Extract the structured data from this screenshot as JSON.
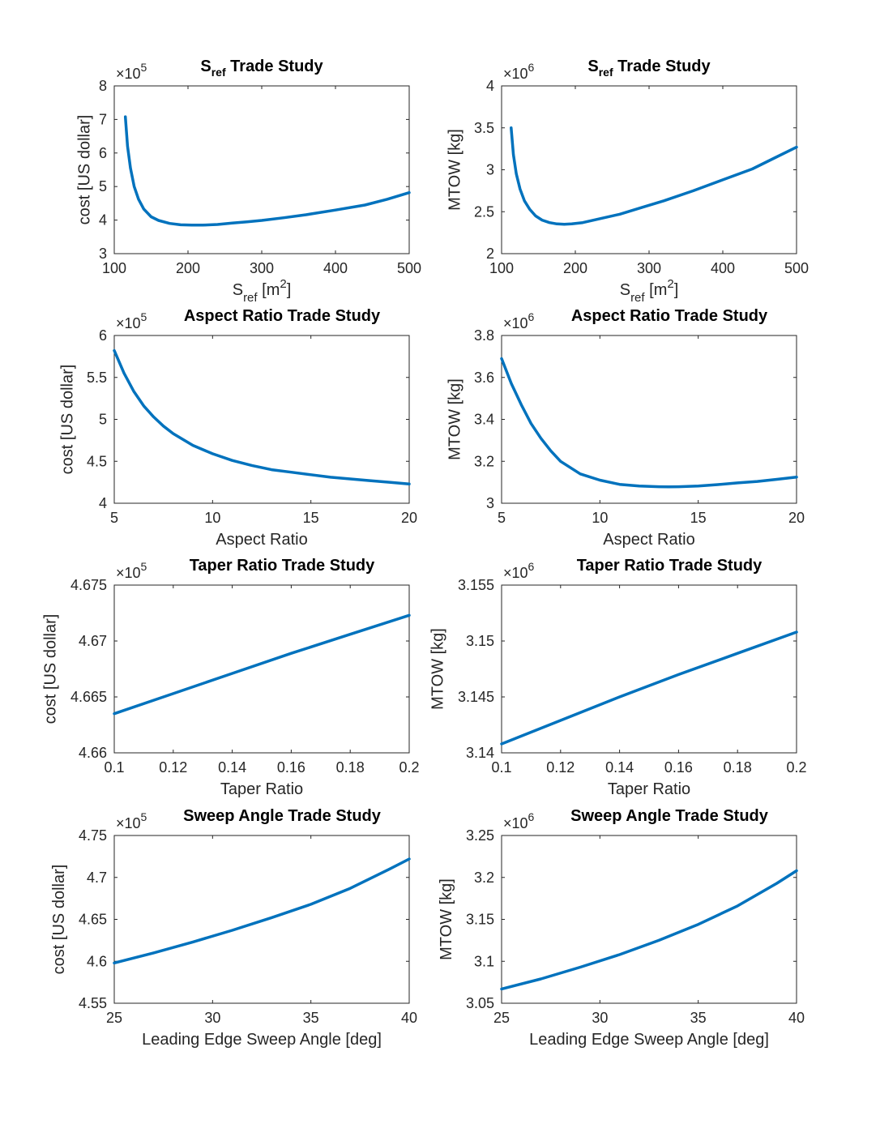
{
  "figure": {
    "background": "#ffffff",
    "line_color": "#0072bd"
  },
  "chart_data": [
    {
      "type": "line",
      "title_main": "S",
      "title_sub": "ref",
      "title_rest": " Trade Study",
      "xlabel_main": "S",
      "xlabel_sub": "ref",
      "xlabel_rest": " [m",
      "xlabel_sup": "2",
      "xlabel_end": "]",
      "ylabel": "cost [US dollar]",
      "exponent_base": "×10",
      "exponent_power": "5",
      "xlim": [
        100,
        500
      ],
      "ylim": [
        3,
        8
      ],
      "xticks": [
        100,
        200,
        300,
        400,
        500
      ],
      "xtick_labels": [
        "100",
        "200",
        "300",
        "400",
        "500"
      ],
      "yticks": [
        3,
        4,
        5,
        6,
        7,
        8
      ],
      "ytick_labels": [
        "3",
        "4",
        "5",
        "6",
        "7",
        "8"
      ],
      "series": [
        {
          "x": [
            115,
            118,
            122,
            127,
            133,
            140,
            150,
            160,
            175,
            190,
            205,
            220,
            240,
            260,
            280,
            300,
            330,
            360,
            400,
            440,
            470,
            500
          ],
          "y": [
            7.08,
            6.2,
            5.55,
            5.0,
            4.62,
            4.33,
            4.1,
            3.99,
            3.9,
            3.86,
            3.85,
            3.85,
            3.87,
            3.91,
            3.95,
            3.99,
            4.07,
            4.16,
            4.3,
            4.45,
            4.62,
            4.82
          ]
        }
      ]
    },
    {
      "type": "line",
      "title_main": "S",
      "title_sub": "ref",
      "title_rest": " Trade Study",
      "xlabel_main": "S",
      "xlabel_sub": "ref",
      "xlabel_rest": " [m",
      "xlabel_sup": "2",
      "xlabel_end": "]",
      "ylabel": "MTOW [kg]",
      "exponent_base": "×10",
      "exponent_power": "6",
      "xlim": [
        100,
        500
      ],
      "ylim": [
        2,
        4
      ],
      "xticks": [
        100,
        200,
        300,
        400,
        500
      ],
      "xtick_labels": [
        "100",
        "200",
        "300",
        "400",
        "500"
      ],
      "yticks": [
        2,
        2.5,
        3,
        3.5,
        4
      ],
      "ytick_labels": [
        "2",
        "2.5",
        "3",
        "3.5",
        "4"
      ],
      "series": [
        {
          "x": [
            113,
            116,
            120,
            125,
            131,
            138,
            146,
            155,
            165,
            175,
            185,
            195,
            210,
            230,
            260,
            290,
            320,
            360,
            400,
            440,
            470,
            500
          ],
          "y": [
            3.5,
            3.18,
            2.95,
            2.77,
            2.63,
            2.53,
            2.45,
            2.4,
            2.37,
            2.355,
            2.35,
            2.355,
            2.37,
            2.41,
            2.47,
            2.55,
            2.63,
            2.75,
            2.88,
            3.01,
            3.14,
            3.27
          ]
        }
      ]
    },
    {
      "type": "line",
      "title_main": "Aspect Ratio Trade Study",
      "ylabel": "cost [US dollar]",
      "xlabel_main": "Aspect Ratio",
      "exponent_base": "×10",
      "exponent_power": "5",
      "xlim": [
        5,
        20
      ],
      "ylim": [
        4,
        6
      ],
      "xticks": [
        5,
        10,
        15,
        20
      ],
      "xtick_labels": [
        "5",
        "10",
        "15",
        "20"
      ],
      "yticks": [
        4,
        4.5,
        5,
        5.5,
        6
      ],
      "ytick_labels": [
        "4",
        "4.5",
        "5",
        "5.5",
        "6"
      ],
      "series": [
        {
          "x": [
            5,
            5.5,
            6,
            6.5,
            7,
            7.5,
            8,
            9,
            10,
            11,
            12,
            13,
            14,
            15,
            16,
            17,
            18,
            19,
            20
          ],
          "y": [
            5.82,
            5.55,
            5.33,
            5.16,
            5.03,
            4.92,
            4.83,
            4.69,
            4.59,
            4.51,
            4.45,
            4.4,
            4.37,
            4.34,
            4.31,
            4.29,
            4.27,
            4.25,
            4.23
          ]
        }
      ]
    },
    {
      "type": "line",
      "title_main": "Aspect Ratio Trade Study",
      "ylabel": "MTOW [kg]",
      "xlabel_main": "Aspect Ratio",
      "exponent_base": "×10",
      "exponent_power": "6",
      "xlim": [
        5,
        20
      ],
      "ylim": [
        3,
        3.8
      ],
      "xticks": [
        5,
        10,
        15,
        20
      ],
      "xtick_labels": [
        "5",
        "10",
        "15",
        "20"
      ],
      "yticks": [
        3,
        3.2,
        3.4,
        3.6,
        3.8
      ],
      "ytick_labels": [
        "3",
        "3.2",
        "3.4",
        "3.6",
        "3.8"
      ],
      "series": [
        {
          "x": [
            5,
            5.5,
            6,
            6.5,
            7,
            7.5,
            8,
            9,
            10,
            11,
            12,
            13,
            13.5,
            14,
            15,
            16,
            17,
            18,
            19,
            20
          ],
          "y": [
            3.69,
            3.57,
            3.47,
            3.38,
            3.31,
            3.25,
            3.2,
            3.14,
            3.11,
            3.09,
            3.082,
            3.079,
            3.078,
            3.079,
            3.082,
            3.089,
            3.097,
            3.104,
            3.114,
            3.125
          ]
        }
      ]
    },
    {
      "type": "line",
      "title_main": " Taper Ratio Trade Study",
      "ylabel": "cost [US dollar]",
      "xlabel_main": "Taper Ratio",
      "exponent_base": "×10",
      "exponent_power": "5",
      "xlim": [
        0.1,
        0.2
      ],
      "ylim": [
        4.66,
        4.675
      ],
      "xticks": [
        0.1,
        0.12,
        0.14,
        0.16,
        0.18,
        0.2
      ],
      "xtick_labels": [
        "0.1",
        "0.12",
        "0.14",
        "0.16",
        "0.18",
        "0.2"
      ],
      "yticks": [
        4.66,
        4.665,
        4.67,
        4.675
      ],
      "ytick_labels": [
        "4.66",
        "4.665",
        "4.67",
        "4.675"
      ],
      "series": [
        {
          "x": [
            0.1,
            0.12,
            0.14,
            0.16,
            0.18,
            0.2
          ],
          "y": [
            4.6635,
            4.6653,
            4.6671,
            4.6689,
            4.6706,
            4.6723
          ]
        }
      ]
    },
    {
      "type": "line",
      "title_main": " Taper Ratio Trade Study",
      "ylabel": "MTOW [kg]",
      "xlabel_main": "Taper Ratio",
      "exponent_base": "×10",
      "exponent_power": "6",
      "xlim": [
        0.1,
        0.2
      ],
      "ylim": [
        3.14,
        3.155
      ],
      "xticks": [
        0.1,
        0.12,
        0.14,
        0.16,
        0.18,
        0.2
      ],
      "xtick_labels": [
        "0.1",
        "0.12",
        "0.14",
        "0.16",
        "0.18",
        "0.2"
      ],
      "yticks": [
        3.14,
        3.145,
        3.15,
        3.155
      ],
      "ytick_labels": [
        "3.14",
        "3.145",
        "3.15",
        "3.155"
      ],
      "series": [
        {
          "x": [
            0.1,
            0.12,
            0.14,
            0.16,
            0.18,
            0.2
          ],
          "y": [
            3.1408,
            3.1429,
            3.145,
            3.147,
            3.1489,
            3.1508
          ]
        }
      ]
    },
    {
      "type": "line",
      "title_main": "Sweep Angle Trade Study",
      "ylabel": "cost [US dollar]",
      "xlabel_main": "Leading Edge Sweep Angle [deg]",
      "exponent_base": "×10",
      "exponent_power": "5",
      "xlim": [
        25,
        40
      ],
      "ylim": [
        4.55,
        4.75
      ],
      "xticks": [
        25,
        30,
        35,
        40
      ],
      "xtick_labels": [
        "25",
        "30",
        "35",
        "40"
      ],
      "yticks": [
        4.55,
        4.6,
        4.65,
        4.7,
        4.75
      ],
      "ytick_labels": [
        "4.55",
        "4.6",
        "4.65",
        "4.7",
        "4.75"
      ],
      "series": [
        {
          "x": [
            25,
            27,
            29,
            31,
            33,
            35,
            37,
            39,
            40
          ],
          "y": [
            4.598,
            4.61,
            4.623,
            4.637,
            4.652,
            4.668,
            4.687,
            4.71,
            4.722
          ]
        }
      ]
    },
    {
      "type": "line",
      "title_main": "Sweep Angle Trade Study",
      "ylabel": "MTOW [kg]",
      "xlabel_main": "Leading Edge Sweep Angle [deg]",
      "exponent_base": "×10",
      "exponent_power": "6",
      "xlim": [
        25,
        40
      ],
      "ylim": [
        3.05,
        3.25
      ],
      "xticks": [
        25,
        30,
        35,
        40
      ],
      "xtick_labels": [
        "25",
        "30",
        "35",
        "40"
      ],
      "yticks": [
        3.05,
        3.1,
        3.15,
        3.2,
        3.25
      ],
      "ytick_labels": [
        "3.05",
        "3.1",
        "3.15",
        "3.2",
        "3.25"
      ],
      "series": [
        {
          "x": [
            25,
            27,
            29,
            31,
            33,
            35,
            37,
            39,
            40
          ],
          "y": [
            3.067,
            3.079,
            3.093,
            3.108,
            3.125,
            3.144,
            3.166,
            3.193,
            3.208
          ]
        }
      ]
    }
  ]
}
